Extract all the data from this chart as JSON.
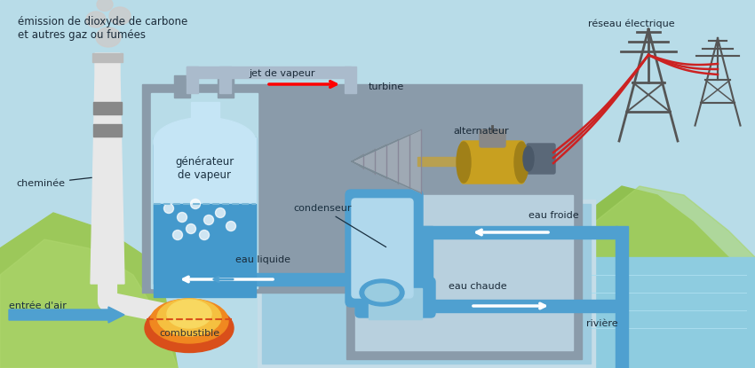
{
  "bg_sky": "#b8dce8",
  "bg_green_left": "#a8cc6a",
  "bg_green_right": "#8ab850",
  "bg_water_right": "#7ec8d8",
  "labels": {
    "emission": "émission de dioxyde de carbone\net autres gaz ou fumées",
    "cheminee": "cheminée",
    "generateur": "générateur\nde vapeur",
    "combustible": "combustible",
    "entree_air": "entrée d'air",
    "jet_vapeur": "jet de vapeur",
    "condenseur": "condenseur",
    "eau_liquide": "eau liquide",
    "turbine": "turbine",
    "alternateur": "alternateur",
    "reseau": "réseau électrique",
    "eau_froide": "eau froide",
    "eau_chaude": "eau chaude",
    "riviere": "rivière"
  },
  "gray_box": "#8a9baa",
  "gray_box2": "#7a8fa0",
  "chimney_white": "#e8e8e8",
  "chimney_band": "#888888",
  "vessel_top": "#c5e5f5",
  "vessel_bot": "#4499cc",
  "vessel_mid": "#7abbd8",
  "combustible_col": "#d94f1a",
  "fire_orange": "#f08820",
  "fire_yellow": "#f5c040",
  "pipe_blue": "#4fa0d0",
  "pipe_blue2": "#5bb0e0",
  "alternator_gold": "#c8a020",
  "red_wire": "#cc2222",
  "tower_col": "#555555",
  "font_size": 8.0
}
